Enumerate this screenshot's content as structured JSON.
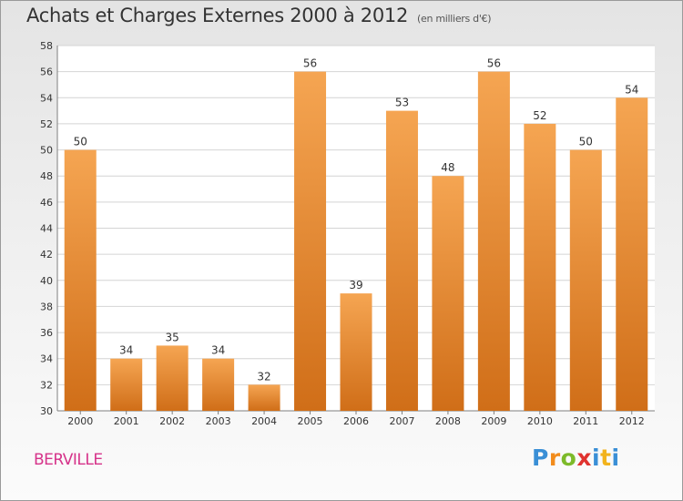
{
  "header": {
    "title": "Achats et Charges Externes 2000 à 2012",
    "unit": "(en milliers d'€)"
  },
  "footer": {
    "city": "BERVILLE",
    "brand": "Proxiti"
  },
  "colors": {
    "bar_top": "#f5a552",
    "bar_bottom": "#d06e18",
    "grid": "#d4d4d4",
    "axis": "#7f7f7f",
    "city": "#d6338a"
  },
  "chart_data": {
    "type": "bar",
    "title": "Achats et Charges Externes 2000 à 2012",
    "subtitle": "(en milliers d'€)",
    "categories": [
      "2000",
      "2001",
      "2002",
      "2003",
      "2004",
      "2005",
      "2006",
      "2007",
      "2008",
      "2009",
      "2010",
      "2011",
      "2012"
    ],
    "values": [
      50,
      34,
      35,
      34,
      32,
      56,
      39,
      53,
      48,
      56,
      52,
      50,
      54
    ],
    "ylim": [
      30,
      58
    ],
    "yticks": [
      30,
      32,
      34,
      36,
      38,
      40,
      42,
      44,
      46,
      48,
      50,
      52,
      54,
      56,
      58
    ],
    "grid": true,
    "data_labels": true
  }
}
